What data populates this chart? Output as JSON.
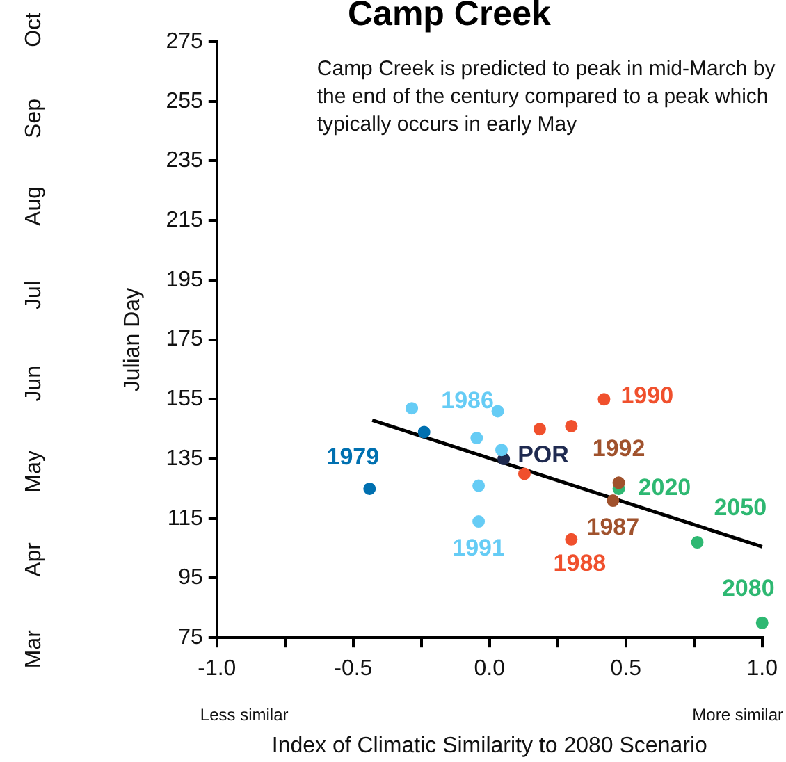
{
  "chart_data": {
    "type": "scatter",
    "title": "Camp Creek",
    "xlabel": "Index of Climatic Similarity to 2080 Scenario",
    "ylabel": "Julian Day",
    "xlim": [
      -1,
      1
    ],
    "xticks": [
      {
        "value": -1,
        "label": "-1.0"
      },
      {
        "value": -0.75,
        "label": null
      },
      {
        "value": -0.5,
        "label": "-0.5"
      },
      {
        "value": -0.25,
        "label": null
      },
      {
        "value": 0,
        "label": "0.0"
      },
      {
        "value": 0.25,
        "label": null
      },
      {
        "value": 0.5,
        "label": "0.5"
      },
      {
        "value": 0.75,
        "label": null
      },
      {
        "value": 1,
        "label": "1.0"
      }
    ],
    "ylim": [
      75,
      275
    ],
    "yticks": [
      75,
      95,
      115,
      135,
      155,
      175,
      195,
      215,
      235,
      255,
      275
    ],
    "grid": false,
    "legend": false,
    "marker": "circle",
    "series": [
      {
        "color": "#0070b0",
        "x": [
          -0.44,
          -0.24
        ],
        "values": [
          125,
          144
        ]
      },
      {
        "color": "#66ccf5",
        "x": [
          -0.285,
          0.03,
          -0.047,
          0.044,
          -0.04,
          -0.04
        ],
        "values": [
          152,
          151,
          142,
          138,
          126,
          114
        ]
      },
      {
        "color": "#1f2a50",
        "x": [
          0.052
        ],
        "values": [
          135
        ]
      },
      {
        "color": "#f0502d",
        "x": [
          0.128,
          0.184,
          0.3,
          0.42,
          0.3
        ],
        "values": [
          130,
          145,
          146,
          155,
          108
        ]
      },
      {
        "color": "#a0522d",
        "x": [
          0.474,
          0.453
        ],
        "values": [
          127,
          121
        ]
      },
      {
        "color": "#2eb872",
        "x": [
          0.474,
          0.762,
          1.0
        ],
        "values": [
          125,
          107,
          80
        ]
      },
      {
        "type": "line",
        "marker": "none",
        "color": "#000000",
        "x": [
          -0.43,
          1.0
        ],
        "values": [
          148,
          105.5
        ]
      }
    ],
    "annotations": [
      {
        "text": "1979",
        "x": -0.44,
        "y": 125
      },
      {
        "text": "1986",
        "x": -0.285,
        "y": 152
      },
      {
        "text": "1991",
        "x": -0.04,
        "y": 114
      },
      {
        "text": "POR",
        "x": 0.052,
        "y": 135
      },
      {
        "text": "1990",
        "x": 0.42,
        "y": 155
      },
      {
        "text": "1988",
        "x": 0.3,
        "y": 108
      },
      {
        "text": "1992",
        "x": 0.474,
        "y": 127
      },
      {
        "text": "1987",
        "x": 0.453,
        "y": 121
      },
      {
        "text": "2020",
        "x": 0.474,
        "y": 125
      },
      {
        "text": "2050",
        "x": 0.762,
        "y": 107
      },
      {
        "text": "2080",
        "x": 1.0,
        "y": 80
      },
      "Camp Creek is predicted to peak in mid-March by the end of the century compared to a peak which typically occurs in early May",
      "Less similar",
      "More similar",
      "Mar",
      "Apr",
      "May",
      "Jun",
      "Jul",
      "Aug",
      "Sep",
      "Oct"
    ]
  }
}
